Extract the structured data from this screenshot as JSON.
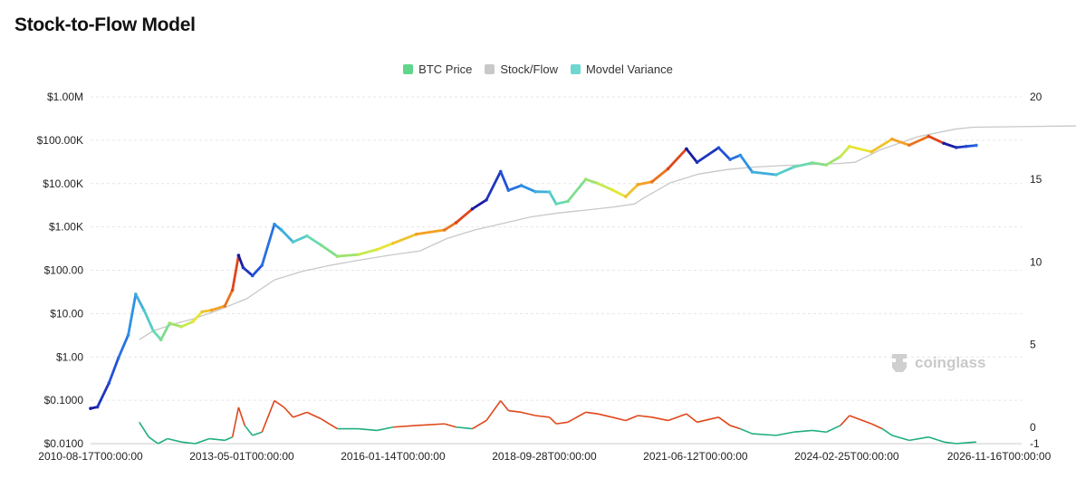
{
  "title": "Stock-to-Flow Model",
  "watermark": "coinglass",
  "chart_data": {
    "type": "line",
    "title": "Stock-to-Flow Model",
    "legend_position": "top-center",
    "grid": true,
    "x_axis": {
      "type": "date",
      "range": [
        "2010-08-17",
        "2028-10-01"
      ],
      "tick_labels": [
        "2010-08-17T00:00:00",
        "2013-05-01T00:00:00",
        "2016-01-14T00:00:00",
        "2018-09-28T00:00:00",
        "2021-06-12T00:00:00",
        "2024-02-25T00:00:00",
        "2026-11-16T00:00:00"
      ]
    },
    "y_axis_left": {
      "scale": "log",
      "range": [
        0.01,
        1000000
      ],
      "tick_values": [
        1000000,
        100000,
        10000,
        1000,
        100,
        10,
        1,
        0.1,
        0.01
      ],
      "tick_labels": [
        "$1.00M",
        "$100.00K",
        "$10.00K",
        "$1.00K",
        "$100.00",
        "$10.00",
        "$1.00",
        "$0.1000",
        "$0.0100"
      ]
    },
    "y_axis_right": {
      "scale": "linear",
      "range": [
        -1,
        20
      ],
      "tick_values": [
        20,
        15,
        10,
        5,
        0,
        -1
      ],
      "tick_labels": [
        "20",
        "15",
        "10",
        "5",
        "0",
        "-1"
      ]
    },
    "series": [
      {
        "name": "BTC Price",
        "color": "#5fd68c",
        "axis": "left",
        "color_scale": [
          "#1a1aa0",
          "#2255dd",
          "#2f9ae6",
          "#5fd6c6",
          "#8be07a",
          "#e4ef3a",
          "#f5a623",
          "#e0461a"
        ],
        "points": [
          [
            "2010-08-17",
            0.065
          ],
          [
            "2010-10-01",
            0.07
          ],
          [
            "2010-12-15",
            0.25
          ],
          [
            "2011-02-15",
            0.95
          ],
          [
            "2011-04-20",
            3.2
          ],
          [
            "2011-06-08",
            28
          ],
          [
            "2011-08-01",
            12
          ],
          [
            "2011-10-01",
            4
          ],
          [
            "2011-11-20",
            2.5
          ],
          [
            "2012-01-15",
            6
          ],
          [
            "2012-04-01",
            5
          ],
          [
            "2012-06-15",
            6.5
          ],
          [
            "2012-08-15",
            11
          ],
          [
            "2012-10-15",
            12
          ],
          [
            "2013-01-10",
            15
          ],
          [
            "2013-03-01",
            35
          ],
          [
            "2013-04-10",
            220
          ],
          [
            "2013-05-10",
            115
          ],
          [
            "2013-07-10",
            75
          ],
          [
            "2013-09-10",
            130
          ],
          [
            "2013-11-30",
            1150
          ],
          [
            "2014-01-15",
            850
          ],
          [
            "2014-04-01",
            450
          ],
          [
            "2014-07-01",
            620
          ],
          [
            "2014-10-01",
            380
          ],
          [
            "2015-01-15",
            210
          ],
          [
            "2015-06-01",
            230
          ],
          [
            "2015-10-01",
            300
          ],
          [
            "2016-01-14",
            420
          ],
          [
            "2016-06-15",
            680
          ],
          [
            "2016-12-15",
            850
          ],
          [
            "2017-03-01",
            1250
          ],
          [
            "2017-06-15",
            2600
          ],
          [
            "2017-09-15",
            4200
          ],
          [
            "2017-12-17",
            19000
          ],
          [
            "2018-02-06",
            7000
          ],
          [
            "2018-05-01",
            9000
          ],
          [
            "2018-08-01",
            6500
          ],
          [
            "2018-11-01",
            6400
          ],
          [
            "2018-12-15",
            3400
          ],
          [
            "2019-03-01",
            3900
          ],
          [
            "2019-06-26",
            12500
          ],
          [
            "2019-09-15",
            10000
          ],
          [
            "2019-12-15",
            7200
          ],
          [
            "2020-03-13",
            5000
          ],
          [
            "2020-06-01",
            9500
          ],
          [
            "2020-09-01",
            11000
          ],
          [
            "2020-12-15",
            22000
          ],
          [
            "2021-04-14",
            63000
          ],
          [
            "2021-06-22",
            31000
          ],
          [
            "2021-11-10",
            67000
          ],
          [
            "2022-01-24",
            36000
          ],
          [
            "2022-04-01",
            45000
          ],
          [
            "2022-06-18",
            18500
          ],
          [
            "2022-11-21",
            16000
          ],
          [
            "2023-03-15",
            24000
          ],
          [
            "2023-07-15",
            30000
          ],
          [
            "2023-10-15",
            27000
          ],
          [
            "2024-01-15",
            42000
          ],
          [
            "2024-03-14",
            72000
          ],
          [
            "2024-08-05",
            54000
          ],
          [
            "2024-12-17",
            106000
          ],
          [
            "2025-04-08",
            77000
          ],
          [
            "2025-08-14",
            123000
          ],
          [
            "2025-11-20",
            85000
          ],
          [
            "2026-02-10",
            68000
          ],
          [
            "2026-04-15",
            72000
          ],
          [
            "2026-06-20",
            76000
          ]
        ]
      },
      {
        "name": "Stock/Flow",
        "color": "#c8c8c8",
        "axis": "left",
        "points": [
          [
            "2011-07-01",
            2.5
          ],
          [
            "2011-10-01",
            4
          ],
          [
            "2012-03-01",
            6
          ],
          [
            "2012-06-15",
            7.5
          ],
          [
            "2012-11-28",
            12
          ],
          [
            "2013-06-01",
            22
          ],
          [
            "2013-12-01",
            60
          ],
          [
            "2014-06-01",
            95
          ],
          [
            "2014-12-01",
            130
          ],
          [
            "2015-06-01",
            170
          ],
          [
            "2016-01-01",
            225
          ],
          [
            "2016-07-09",
            280
          ],
          [
            "2017-01-01",
            540
          ],
          [
            "2017-07-01",
            850
          ],
          [
            "2018-01-01",
            1200
          ],
          [
            "2018-07-01",
            1700
          ],
          [
            "2019-01-01",
            2100
          ],
          [
            "2019-07-01",
            2450
          ],
          [
            "2020-01-01",
            2900
          ],
          [
            "2020-05-11",
            3400
          ],
          [
            "2020-07-01",
            4500
          ],
          [
            "2021-01-01",
            10500
          ],
          [
            "2021-07-01",
            16500
          ],
          [
            "2022-01-01",
            21000
          ],
          [
            "2022-07-01",
            24000
          ],
          [
            "2023-01-01",
            26000
          ],
          [
            "2023-07-01",
            27500
          ],
          [
            "2024-01-01",
            29000
          ],
          [
            "2024-04-20",
            31000
          ],
          [
            "2024-10-01",
            60000
          ],
          [
            "2025-06-01",
            120000
          ],
          [
            "2026-02-01",
            180000
          ],
          [
            "2026-06-01",
            200000
          ],
          [
            "2028-04-20",
            215000
          ],
          [
            "2028-07-01",
            430000
          ],
          [
            "2028-10-01",
            500000
          ]
        ]
      },
      {
        "name": "Movdel Variance",
        "color": "#6fd6d0",
        "axis": "right",
        "positive_color": "#e0461a",
        "negative_color": "#1fae7f",
        "points": [
          [
            "2011-07-01",
            0.3
          ],
          [
            "2011-09-01",
            -0.6
          ],
          [
            "2011-11-01",
            -1.0
          ],
          [
            "2012-01-01",
            -0.7
          ],
          [
            "2012-04-01",
            -0.9
          ],
          [
            "2012-07-01",
            -1.0
          ],
          [
            "2012-10-01",
            -0.7
          ],
          [
            "2013-01-10",
            -0.8
          ],
          [
            "2013-03-01",
            -0.6
          ],
          [
            "2013-04-10",
            1.2
          ],
          [
            "2013-05-20",
            0.1
          ],
          [
            "2013-07-10",
            -0.5
          ],
          [
            "2013-09-10",
            -0.3
          ],
          [
            "2013-11-30",
            1.6
          ],
          [
            "2014-02-01",
            1.2
          ],
          [
            "2014-04-01",
            0.6
          ],
          [
            "2014-07-01",
            0.9
          ],
          [
            "2014-10-01",
            0.5
          ],
          [
            "2015-01-15",
            -0.1
          ],
          [
            "2015-06-01",
            -0.1
          ],
          [
            "2015-10-01",
            -0.2
          ],
          [
            "2016-01-14",
            0.0
          ],
          [
            "2016-06-15",
            0.1
          ],
          [
            "2016-12-15",
            0.2
          ],
          [
            "2017-03-01",
            0.0
          ],
          [
            "2017-06-15",
            -0.1
          ],
          [
            "2017-09-15",
            0.4
          ],
          [
            "2017-12-17",
            1.6
          ],
          [
            "2018-02-06",
            1.0
          ],
          [
            "2018-05-01",
            0.9
          ],
          [
            "2018-08-01",
            0.7
          ],
          [
            "2018-11-01",
            0.6
          ],
          [
            "2018-12-15",
            0.2
          ],
          [
            "2019-03-01",
            0.3
          ],
          [
            "2019-06-26",
            0.9
          ],
          [
            "2019-09-15",
            0.8
          ],
          [
            "2019-12-15",
            0.6
          ],
          [
            "2020-03-13",
            0.4
          ],
          [
            "2020-06-01",
            0.7
          ],
          [
            "2020-09-01",
            0.6
          ],
          [
            "2020-12-15",
            0.4
          ],
          [
            "2021-04-14",
            0.8
          ],
          [
            "2021-06-22",
            0.3
          ],
          [
            "2021-11-10",
            0.6
          ],
          [
            "2022-01-24",
            0.1
          ],
          [
            "2022-04-01",
            -0.1
          ],
          [
            "2022-06-18",
            -0.4
          ],
          [
            "2022-11-21",
            -0.5
          ],
          [
            "2023-03-15",
            -0.3
          ],
          [
            "2023-07-15",
            -0.2
          ],
          [
            "2023-10-15",
            -0.3
          ],
          [
            "2024-01-15",
            0.1
          ],
          [
            "2024-03-14",
            0.7
          ],
          [
            "2024-08-05",
            0.2
          ],
          [
            "2024-10-15",
            -0.1
          ],
          [
            "2024-12-17",
            -0.5
          ],
          [
            "2025-04-08",
            -0.8
          ],
          [
            "2025-08-14",
            -0.6
          ],
          [
            "2025-11-20",
            -0.9
          ],
          [
            "2026-02-10",
            -1.0
          ],
          [
            "2026-04-15",
            -0.95
          ],
          [
            "2026-06-20",
            -0.9
          ]
        ]
      }
    ]
  }
}
